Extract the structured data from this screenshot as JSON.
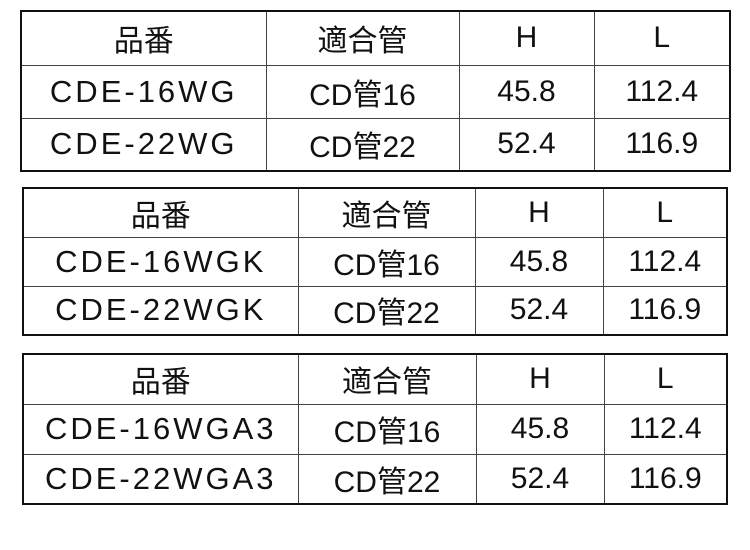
{
  "headers": [
    "品番",
    "適合管",
    "H",
    "L"
  ],
  "tables": [
    {
      "rows": [
        {
          "code": "CDE-16WG",
          "pipe": "CD管16",
          "h": "45.8",
          "l": "112.4"
        },
        {
          "code": "CDE-22WG",
          "pipe": "CD管22",
          "h": "52.4",
          "l": "116.9"
        }
      ]
    },
    {
      "rows": [
        {
          "code": "CDE-16WGK",
          "pipe": "CD管16",
          "h": "45.8",
          "l": "112.4"
        },
        {
          "code": "CDE-22WGK",
          "pipe": "CD管22",
          "h": "52.4",
          "l": "116.9"
        }
      ]
    },
    {
      "rows": [
        {
          "code": "CDE-16WGA3",
          "pipe": "CD管16",
          "h": "45.8",
          "l": "112.4"
        },
        {
          "code": "CDE-22WGA3",
          "pipe": "CD管22",
          "h": "52.4",
          "l": "116.9"
        }
      ]
    }
  ]
}
